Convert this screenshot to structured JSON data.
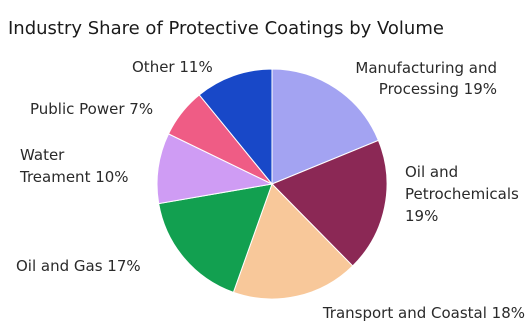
{
  "chart_data": {
    "type": "pie",
    "title": "Industry Share of Protective Coatings by Volume",
    "slices": [
      {
        "label": "Manufacturing and Processing 19%",
        "lines": [
          "Manufacturing and",
          "Processing 19%"
        ],
        "value": 19,
        "color": "#a3a3f2"
      },
      {
        "label": "Oil and Petrochemicals 19%",
        "lines": [
          "Oil and",
          "Petrochemicals",
          "19%"
        ],
        "value": 19,
        "color": "#8b2855"
      },
      {
        "label": "Transport and Coastal 18%",
        "lines": [
          "Transport and Coastal 18%"
        ],
        "value": 18,
        "color": "#f8c89a"
      },
      {
        "label": "Oil and Gas 17%",
        "lines": [
          "Oil and Gas 17%"
        ],
        "value": 17,
        "color": "#12a050"
      },
      {
        "label": "Water Treament 10%",
        "lines": [
          "Water",
          "Treament 10%"
        ],
        "value": 10,
        "color": "#cf9cf4"
      },
      {
        "label": "Public Power 7%",
        "lines": [
          "Public Power 7%"
        ],
        "value": 7,
        "color": "#ef5c85"
      },
      {
        "label": "Other 11%",
        "lines": [
          "Other 11%"
        ],
        "value": 11,
        "color": "#1848c8"
      }
    ]
  }
}
